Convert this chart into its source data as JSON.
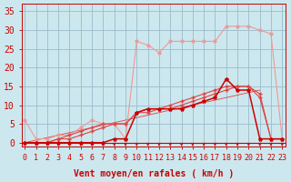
{
  "xlabel": "Vent moyen/en rafales ( km/h )",
  "bg_color": "#cce8ee",
  "grid_color": "#99bbcc",
  "x_ticks": [
    0,
    1,
    2,
    3,
    4,
    5,
    6,
    7,
    8,
    9,
    10,
    11,
    12,
    13,
    14,
    15,
    16,
    17,
    18,
    19,
    20,
    21,
    22,
    23
  ],
  "y_ticks": [
    0,
    5,
    10,
    15,
    20,
    25,
    30,
    35
  ],
  "xlim": [
    -0.3,
    23.3
  ],
  "ylim": [
    -1,
    37
  ],
  "line_light_x": [
    0,
    1,
    2,
    3,
    4,
    5,
    6,
    7,
    8,
    9,
    10,
    11,
    12,
    13,
    14,
    15,
    16,
    17,
    18,
    19,
    20,
    21,
    22,
    23
  ],
  "line_light_y": [
    6,
    1,
    1,
    2,
    2,
    4,
    6,
    5,
    5,
    1,
    27,
    26,
    24,
    27,
    27,
    27,
    27,
    27,
    31,
    31,
    31,
    30,
    29,
    1
  ],
  "line_light_color": "#ee9999",
  "line_diag1_x": [
    0,
    1,
    2,
    3,
    4,
    5,
    6,
    7,
    8,
    9,
    10,
    11,
    12,
    13,
    14,
    15,
    16,
    17,
    18,
    19,
    20,
    21
  ],
  "line_diag1_y": [
    0,
    0,
    0,
    0,
    0,
    0,
    0,
    0,
    0,
    0,
    0,
    1,
    2,
    3,
    4,
    5,
    6,
    7,
    8,
    9,
    10,
    11
  ],
  "line_diag2_x": [
    0,
    1,
    2,
    3,
    4,
    5,
    6,
    7,
    8,
    9,
    10,
    11,
    12,
    13,
    14,
    15,
    16,
    17,
    18,
    19,
    20,
    21,
    22,
    23
  ],
  "line_diag2_y": [
    0,
    0,
    0,
    1,
    1,
    2,
    3,
    4,
    5,
    5,
    8,
    8,
    9,
    9,
    10,
    11,
    12,
    13,
    14,
    15,
    15,
    12,
    1,
    1
  ],
  "line_diag3_x": [
    0,
    1,
    2,
    3,
    4,
    5,
    6,
    7,
    8,
    9,
    10,
    11,
    12,
    13,
    14,
    15,
    16,
    17,
    18,
    19,
    20,
    21,
    22,
    23
  ],
  "line_diag3_y": [
    0,
    0,
    0,
    1,
    2,
    3,
    4,
    5,
    5,
    5,
    8,
    9,
    9,
    10,
    11,
    12,
    13,
    14,
    15,
    15,
    15,
    13,
    1,
    1
  ],
  "line_dark_x": [
    0,
    1,
    2,
    3,
    4,
    5,
    6,
    7,
    8,
    9,
    10,
    11,
    12,
    13,
    14,
    15,
    16,
    17,
    18,
    19,
    20,
    21,
    22,
    23
  ],
  "line_dark_y": [
    0,
    0,
    0,
    0,
    0,
    0,
    0,
    0,
    1,
    1,
    8,
    9,
    9,
    9,
    9,
    10,
    11,
    12,
    17,
    14,
    14,
    1,
    1,
    1
  ],
  "line_dark_color": "#cc0000",
  "line_mid_color": "#dd4444",
  "xlabel_color": "#cc0000",
  "xlabel_fontsize": 7,
  "tick_color": "#cc0000",
  "tick_fontsize": 6,
  "axis_color": "#cc0000",
  "arrow_color": "#cc0000"
}
